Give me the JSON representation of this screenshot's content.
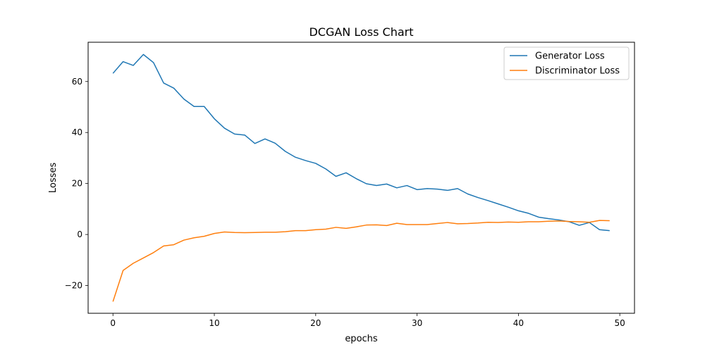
{
  "chart_data": {
    "type": "line",
    "title": "DCGAN Loss Chart",
    "xlabel": "epochs",
    "ylabel": "Losses",
    "xlim": [
      -2.45,
      51.45
    ],
    "ylim": [
      -30.9,
      75.4
    ],
    "xticks": [
      0,
      10,
      20,
      30,
      40,
      50
    ],
    "yticks": [
      -20,
      0,
      20,
      40,
      60
    ],
    "grid": false,
    "legend_position": "top-right",
    "x": [
      0,
      1,
      2,
      3,
      4,
      5,
      6,
      7,
      8,
      9,
      10,
      11,
      12,
      13,
      14,
      15,
      16,
      17,
      18,
      19,
      20,
      21,
      22,
      23,
      24,
      25,
      26,
      27,
      28,
      29,
      30,
      31,
      32,
      33,
      34,
      35,
      36,
      37,
      38,
      39,
      40,
      41,
      42,
      43,
      44,
      45,
      46,
      47,
      48,
      49
    ],
    "series": [
      {
        "name": "Generator Loss",
        "color": "#1f77b4",
        "values": [
          63.2,
          67.8,
          66.3,
          70.6,
          67.4,
          59.4,
          57.4,
          53.1,
          50.2,
          50.2,
          45.4,
          41.7,
          39.4,
          39.0,
          35.7,
          37.5,
          35.8,
          32.6,
          30.3,
          29.0,
          27.9,
          25.7,
          22.8,
          24.2,
          21.9,
          19.9,
          19.2,
          19.8,
          18.3,
          19.2,
          17.6,
          18.0,
          17.8,
          17.3,
          18.0,
          15.9,
          14.5,
          13.3,
          12.0,
          10.7,
          9.3,
          8.3,
          6.8,
          6.2,
          5.7,
          5.0,
          3.6,
          4.7,
          1.9,
          1.5
        ]
      },
      {
        "name": "Discriminator Loss",
        "color": "#ff7f0e",
        "values": [
          -26.3,
          -14.1,
          -11.3,
          -9.2,
          -7.1,
          -4.5,
          -4.0,
          -2.2,
          -1.3,
          -0.7,
          0.4,
          1.0,
          0.8,
          0.7,
          0.8,
          0.9,
          0.9,
          1.1,
          1.5,
          1.5,
          1.9,
          2.1,
          2.8,
          2.4,
          3.0,
          3.7,
          3.8,
          3.5,
          4.4,
          3.9,
          3.9,
          3.9,
          4.3,
          4.7,
          4.2,
          4.3,
          4.5,
          4.8,
          4.7,
          4.9,
          4.8,
          5.0,
          5.0,
          5.2,
          5.3,
          5.1,
          5.0,
          4.8,
          5.5,
          5.4
        ]
      }
    ]
  }
}
